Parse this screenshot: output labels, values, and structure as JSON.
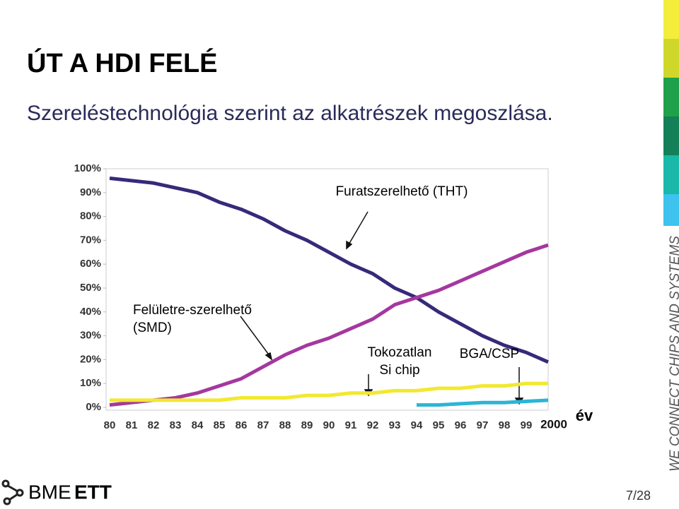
{
  "slide": {
    "title": "ÚT A HDI FELÉ",
    "subtitle": "Szereléstechnológia szerint az alkatrészek megoszlása.",
    "logo": [
      "BME",
      "ETT"
    ],
    "side_text": "WE CONNECT CHIPS AND SYSTEMS",
    "page": "7/28"
  },
  "chart_data": {
    "type": "line",
    "x_label": "év",
    "categories": [
      "80",
      "81",
      "82",
      "83",
      "84",
      "85",
      "86",
      "87",
      "88",
      "89",
      "90",
      "91",
      "92",
      "93",
      "94",
      "95",
      "96",
      "97",
      "98",
      "99",
      "2000"
    ],
    "series": [
      {
        "color": "#37297a",
        "values": [
          96,
          95,
          94,
          92,
          90,
          86,
          83,
          79,
          74,
          70,
          65,
          60,
          56,
          50,
          46,
          40,
          35,
          30,
          26,
          23,
          19
        ]
      },
      {
        "color": "#a5379f",
        "values": [
          1,
          2,
          3,
          4,
          6,
          9,
          12,
          17,
          22,
          26,
          29,
          33,
          37,
          43,
          46,
          49,
          53,
          57,
          61,
          65,
          68
        ]
      },
      {
        "color": "#f2e830",
        "values": [
          3,
          3,
          3,
          3,
          3,
          3,
          4,
          4,
          4,
          5,
          5,
          6,
          6,
          7,
          7,
          8,
          8,
          9,
          9,
          10,
          10
        ]
      },
      {
        "color": "#2bb5d6",
        "values": [
          null,
          null,
          null,
          null,
          null,
          null,
          null,
          null,
          null,
          null,
          null,
          null,
          null,
          null,
          1,
          1,
          1.5,
          2,
          2,
          2.5,
          3
        ]
      }
    ],
    "annotations": [
      {
        "lines": [
          "Furatszerelhető (THT)"
        ]
      },
      {
        "lines": [
          "Felületre-szerelhető",
          "(SMD)"
        ]
      },
      {
        "lines": [
          "Tokozatlan",
          "Si chip"
        ]
      },
      {
        "lines": [
          "BGA/CSP"
        ]
      }
    ],
    "ylim": [
      0,
      100
    ],
    "yticks": [
      {
        "value": 0,
        "label": "0%"
      },
      {
        "value": 10,
        "label": "10%"
      },
      {
        "value": 20,
        "label": "20%"
      },
      {
        "value": 30,
        "label": "30%"
      },
      {
        "value": 40,
        "label": "40%"
      },
      {
        "value": 50,
        "label": "50%"
      },
      {
        "value": 60,
        "label": "60%"
      },
      {
        "value": 70,
        "label": "70%"
      },
      {
        "value": 80,
        "label": "80%"
      },
      {
        "value": 90,
        "label": "90%"
      },
      {
        "value": 100,
        "label": "100%"
      }
    ],
    "grid": false
  }
}
